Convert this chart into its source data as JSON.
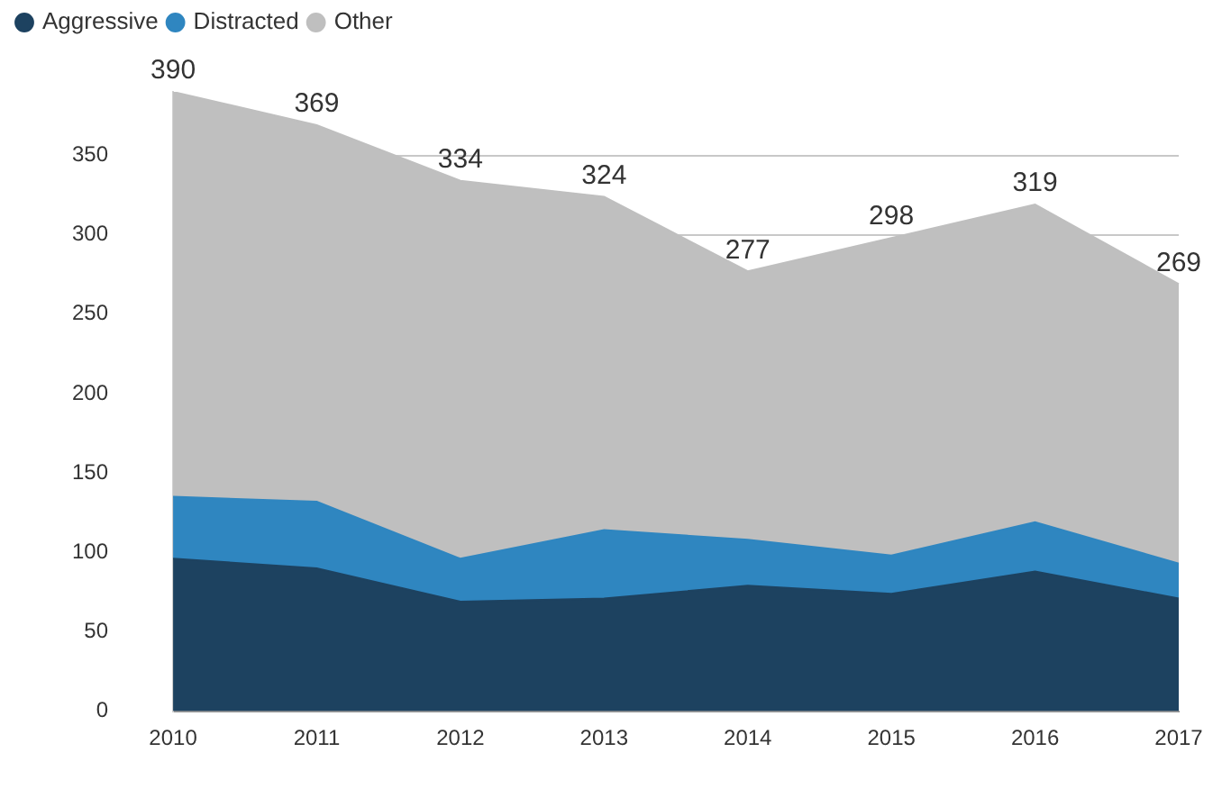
{
  "chart_data": {
    "type": "area",
    "stacked": true,
    "categories": [
      "2010",
      "2011",
      "2012",
      "2013",
      "2014",
      "2015",
      "2016",
      "2017"
    ],
    "series": [
      {
        "name": "Aggressive",
        "color": "#1d4260",
        "values": [
          96,
          90,
          69,
          71,
          79,
          74,
          88,
          71
        ]
      },
      {
        "name": "Distracted",
        "color": "#2f86c0",
        "values": [
          39,
          42,
          27,
          43,
          29,
          24,
          31,
          22
        ]
      },
      {
        "name": "Other",
        "color": "#bfbfbf",
        "values": [
          255,
          237,
          238,
          210,
          169,
          200,
          200,
          176
        ]
      }
    ],
    "totals": [
      "390",
      "369",
      "334",
      "324",
      "277",
      "298",
      "319",
      "269"
    ],
    "ylim": [
      0,
      390
    ],
    "yticks": [
      0,
      50,
      100,
      150,
      200,
      250,
      300,
      350
    ],
    "grid": "y",
    "legend": "top left"
  }
}
